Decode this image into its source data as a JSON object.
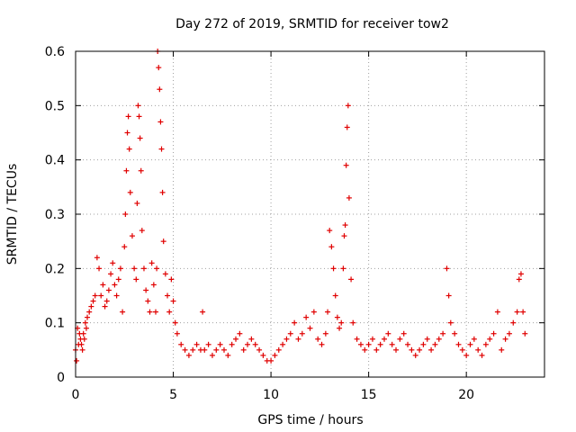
{
  "chart_data": {
    "type": "scatter",
    "title": "Day 272 of 2019, SRMTID for receiver tow2",
    "xlabel": "GPS time / hours",
    "ylabel": "SRMTID / TECUs",
    "xlim": [
      0,
      24
    ],
    "ylim": [
      0,
      0.6
    ],
    "xticks": [
      0,
      5,
      10,
      15,
      20
    ],
    "yticks": [
      0,
      0.1,
      0.2,
      0.3,
      0.4,
      0.5,
      0.6
    ],
    "xtick_labels": [
      "0",
      "5",
      "10",
      "15",
      "20"
    ],
    "ytick_labels": [
      "0",
      "0.1",
      "0.2",
      "0.3",
      "0.4",
      "0.5",
      "0.6"
    ],
    "grid": true,
    "marker": "+",
    "color": "#e00000",
    "series": [
      {
        "name": "tow2",
        "x": [
          0.0,
          0.05,
          0.1,
          0.15,
          0.2,
          0.25,
          0.3,
          0.35,
          0.4,
          0.45,
          0.5,
          0.55,
          0.6,
          0.7,
          0.8,
          0.9,
          1.0,
          1.1,
          1.2,
          1.3,
          1.4,
          1.5,
          1.6,
          1.7,
          1.8,
          1.9,
          2.0,
          2.1,
          2.2,
          2.3,
          2.4,
          2.5,
          2.55,
          2.6,
          2.65,
          2.7,
          2.75,
          2.8,
          2.9,
          3.0,
          3.1,
          3.15,
          3.2,
          3.25,
          3.3,
          3.35,
          3.4,
          3.5,
          3.6,
          3.7,
          3.8,
          3.9,
          4.0,
          4.1,
          4.15,
          4.2,
          4.25,
          4.3,
          4.35,
          4.4,
          4.45,
          4.5,
          4.6,
          4.7,
          4.8,
          4.9,
          5.0,
          5.1,
          5.2,
          5.4,
          5.6,
          5.8,
          6.0,
          6.2,
          6.4,
          6.5,
          6.6,
          6.8,
          7.0,
          7.2,
          7.4,
          7.6,
          7.8,
          8.0,
          8.2,
          8.4,
          8.6,
          8.8,
          9.0,
          9.2,
          9.4,
          9.6,
          9.8,
          10.0,
          10.2,
          10.4,
          10.6,
          10.8,
          11.0,
          11.2,
          11.4,
          11.6,
          11.8,
          12.0,
          12.2,
          12.4,
          12.6,
          12.8,
          12.9,
          13.0,
          13.1,
          13.2,
          13.3,
          13.4,
          13.5,
          13.6,
          13.7,
          13.75,
          13.8,
          13.85,
          13.9,
          13.95,
          14.0,
          14.1,
          14.2,
          14.4,
          14.6,
          14.8,
          15.0,
          15.2,
          15.4,
          15.6,
          15.8,
          16.0,
          16.2,
          16.4,
          16.6,
          16.8,
          17.0,
          17.2,
          17.4,
          17.6,
          17.8,
          18.0,
          18.2,
          18.4,
          18.6,
          18.8,
          19.0,
          19.1,
          19.2,
          19.4,
          19.6,
          19.8,
          20.0,
          20.2,
          20.4,
          20.6,
          20.8,
          21.0,
          21.2,
          21.4,
          21.6,
          21.8,
          22.0,
          22.2,
          22.4,
          22.6,
          22.7,
          22.8,
          22.9,
          23.0
        ],
        "y": [
          0.05,
          0.03,
          0.09,
          0.06,
          0.08,
          0.07,
          0.06,
          0.05,
          0.08,
          0.07,
          0.1,
          0.09,
          0.11,
          0.12,
          0.13,
          0.14,
          0.15,
          0.22,
          0.2,
          0.15,
          0.17,
          0.13,
          0.14,
          0.16,
          0.19,
          0.21,
          0.17,
          0.15,
          0.18,
          0.2,
          0.12,
          0.24,
          0.3,
          0.38,
          0.45,
          0.48,
          0.42,
          0.34,
          0.26,
          0.2,
          0.18,
          0.32,
          0.5,
          0.48,
          0.44,
          0.38,
          0.27,
          0.2,
          0.16,
          0.14,
          0.12,
          0.21,
          0.17,
          0.12,
          0.2,
          0.6,
          0.57,
          0.53,
          0.47,
          0.42,
          0.34,
          0.25,
          0.19,
          0.15,
          0.12,
          0.18,
          0.14,
          0.1,
          0.08,
          0.06,
          0.05,
          0.04,
          0.05,
          0.06,
          0.05,
          0.12,
          0.05,
          0.06,
          0.04,
          0.05,
          0.06,
          0.05,
          0.04,
          0.06,
          0.07,
          0.08,
          0.05,
          0.06,
          0.07,
          0.06,
          0.05,
          0.04,
          0.03,
          0.03,
          0.04,
          0.05,
          0.06,
          0.07,
          0.08,
          0.1,
          0.07,
          0.08,
          0.11,
          0.09,
          0.12,
          0.07,
          0.06,
          0.08,
          0.12,
          0.27,
          0.24,
          0.2,
          0.15,
          0.11,
          0.09,
          0.1,
          0.2,
          0.26,
          0.28,
          0.39,
          0.46,
          0.5,
          0.33,
          0.18,
          0.1,
          0.07,
          0.06,
          0.05,
          0.06,
          0.07,
          0.05,
          0.06,
          0.07,
          0.08,
          0.06,
          0.05,
          0.07,
          0.08,
          0.06,
          0.05,
          0.04,
          0.05,
          0.06,
          0.07,
          0.05,
          0.06,
          0.07,
          0.08,
          0.2,
          0.15,
          0.1,
          0.08,
          0.06,
          0.05,
          0.04,
          0.06,
          0.07,
          0.05,
          0.04,
          0.06,
          0.07,
          0.08,
          0.12,
          0.05,
          0.07,
          0.08,
          0.1,
          0.12,
          0.18,
          0.19,
          0.12,
          0.08
        ]
      }
    ]
  }
}
